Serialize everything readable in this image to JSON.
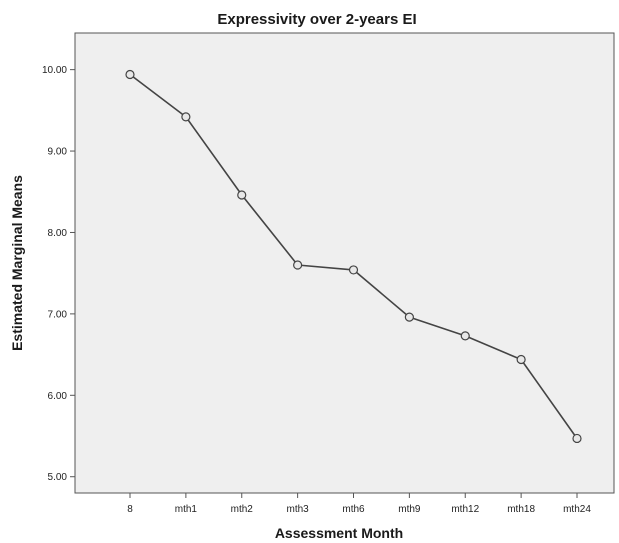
{
  "chart_data": {
    "type": "line",
    "title": "Expressivity over 2-years EI",
    "xlabel": "Assessment Month",
    "ylabel": "Estimated Marginal Means",
    "categories": [
      "8",
      "mth1",
      "mth2",
      "mth3",
      "mth6",
      "mth9",
      "mth12",
      "mth18",
      "mth24"
    ],
    "values": [
      9.94,
      9.42,
      8.46,
      7.6,
      7.54,
      6.96,
      6.73,
      6.44,
      5.47
    ],
    "ylim": [
      4.8,
      10.45
    ],
    "yticks": [
      "5.00",
      "6.00",
      "7.00",
      "8.00",
      "9.00",
      "10.00"
    ],
    "ytick_values": [
      5,
      6,
      7,
      8,
      9,
      10
    ],
    "grid": false,
    "legend": "none",
    "colors": {
      "plot_background": "#efefef",
      "line": "#444444",
      "marker_fill": "#e8e8e8",
      "marker_stroke": "#444444",
      "frame": "#555555"
    }
  }
}
